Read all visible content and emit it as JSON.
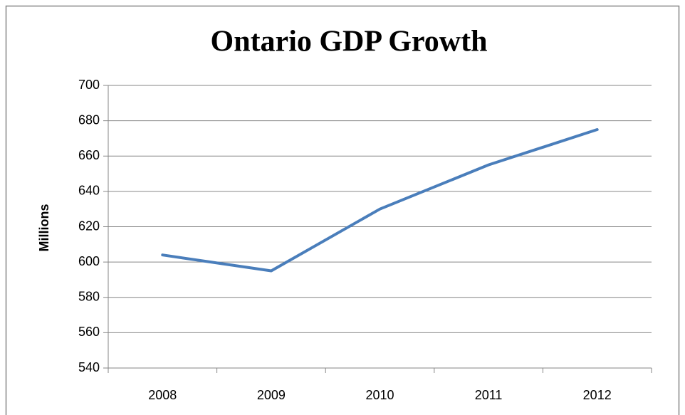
{
  "chart_data": {
    "type": "line",
    "title": "Ontario GDP Growth",
    "y_label": "Millions",
    "categories": [
      "2008",
      "2009",
      "2010",
      "2011",
      "2012"
    ],
    "values": [
      604,
      595,
      630,
      655,
      675
    ],
    "color": "#4a7ebb",
    "ylim": [
      540,
      700
    ],
    "yticks": [
      540,
      560,
      580,
      600,
      620,
      640,
      660,
      680,
      700
    ],
    "grid": true
  }
}
